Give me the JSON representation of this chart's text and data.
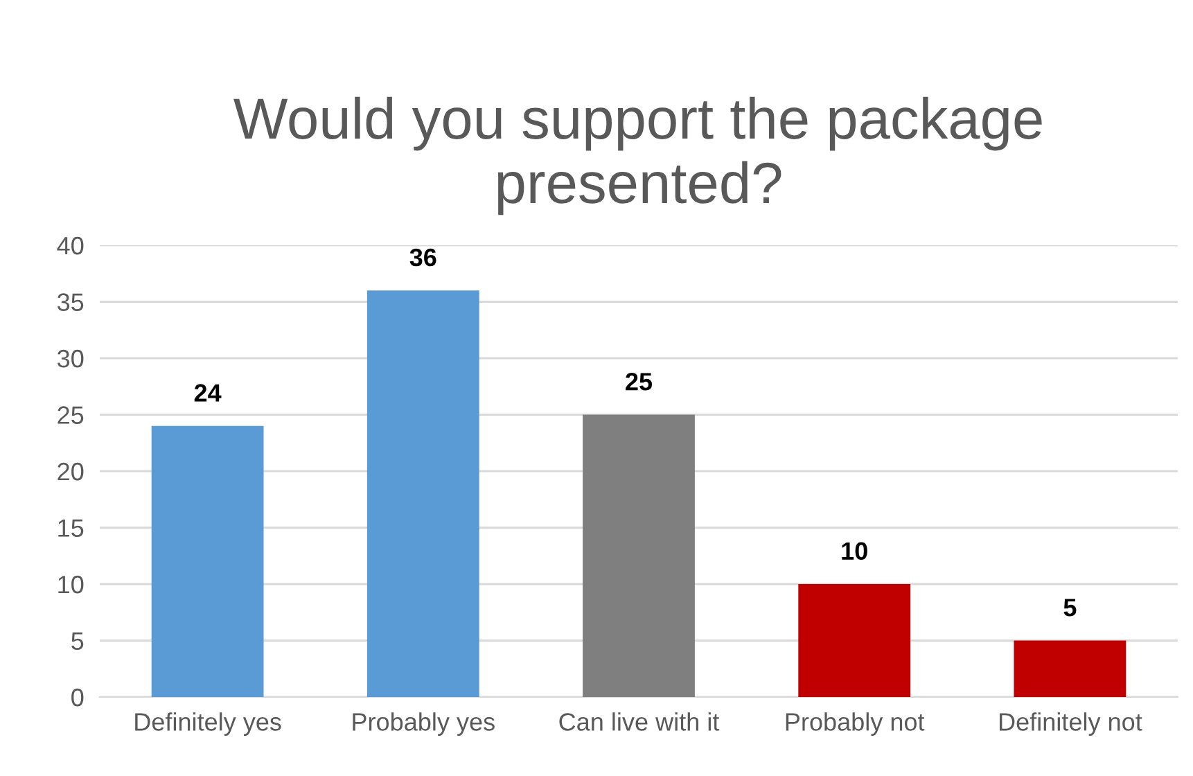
{
  "chart_data": {
    "type": "bar",
    "title": "Would you support the package\npresented?",
    "categories": [
      "Definitely yes",
      "Probably yes",
      "Can live with it",
      "Probably not",
      "Definitely not"
    ],
    "values": [
      24,
      36,
      25,
      10,
      5
    ],
    "colors": [
      "#5b9bd5",
      "#5b9bd5",
      "#7f7f7f",
      "#c00000",
      "#c00000"
    ],
    "ylim": [
      0,
      40
    ],
    "yticks": [
      0,
      5,
      10,
      15,
      20,
      25,
      30,
      35,
      40
    ],
    "grid": "y",
    "data_labels": true
  }
}
